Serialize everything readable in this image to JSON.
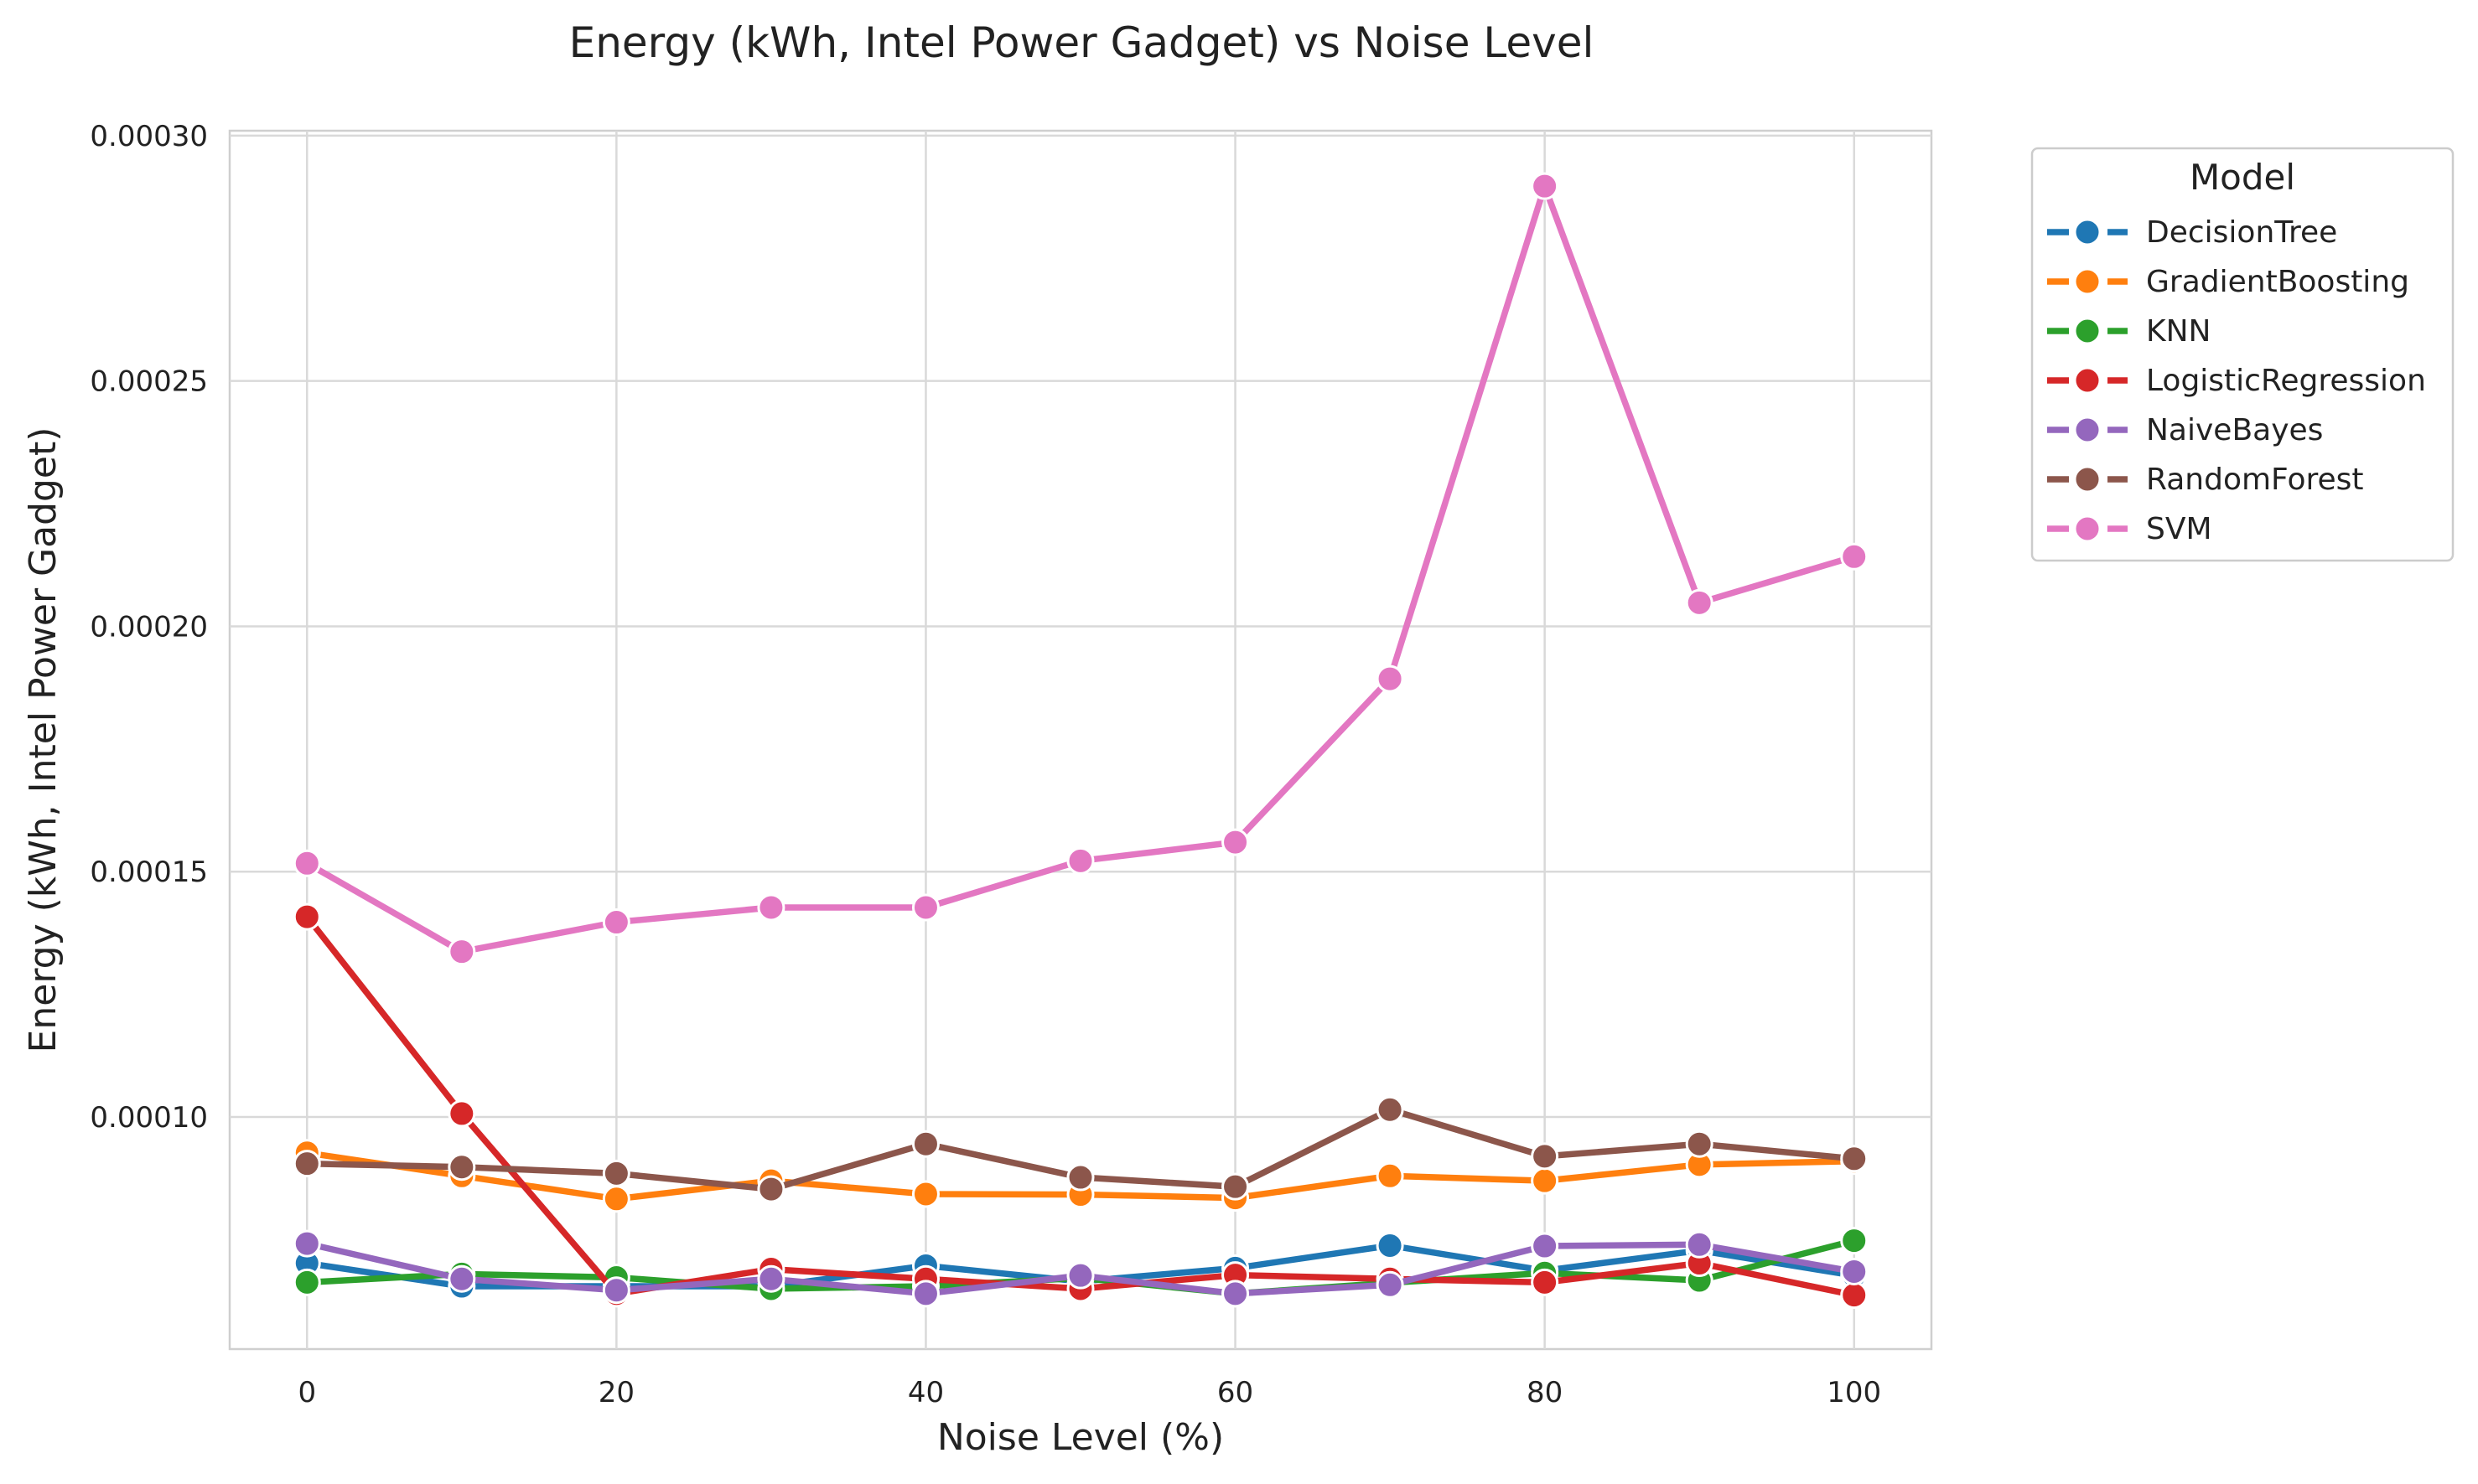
{
  "chart_data": {
    "type": "line",
    "title": "Energy (kWh, Intel Power Gadget) vs Noise Level",
    "xlabel": "Noise Level (%)",
    "ylabel": "Energy (kWh, Intel Power Gadget)",
    "x": [
      0,
      10,
      20,
      30,
      40,
      50,
      60,
      70,
      80,
      90,
      100
    ],
    "xticks": [
      0,
      20,
      40,
      60,
      80,
      100
    ],
    "xtick_labels": [
      "0",
      "20",
      "40",
      "60",
      "80",
      "100"
    ],
    "yticks": [
      0.0001,
      0.00015,
      0.0002,
      0.00025,
      0.0003
    ],
    "ytick_labels": [
      "0.00010",
      "0.00015",
      "0.00020",
      "0.00025",
      "0.00030"
    ],
    "xlim": [
      -5,
      105
    ],
    "ylim": [
      5.27e-05,
      0.000301
    ],
    "grid": true,
    "legend": {
      "title": "Model",
      "placement": "outside-right"
    },
    "series": [
      {
        "name": "DecisionTree",
        "color": "#1f77b4",
        "values": [
          7.02e-05,
          6.55e-05,
          6.55e-05,
          6.55e-05,
          6.97e-05,
          6.65e-05,
          6.92e-05,
          7.38e-05,
          6.87e-05,
          7.28e-05,
          6.77e-05
        ]
      },
      {
        "name": "GradientBoosting",
        "color": "#ff7f0e",
        "values": [
          9.27e-05,
          8.8e-05,
          8.33e-05,
          8.7e-05,
          8.43e-05,
          8.42e-05,
          8.35e-05,
          8.8e-05,
          8.7e-05,
          9.03e-05,
          9.1e-05
        ]
      },
      {
        "name": "KNN",
        "color": "#2ca02c",
        "values": [
          6.63e-05,
          6.8e-05,
          6.73e-05,
          6.5e-05,
          6.55e-05,
          6.72e-05,
          6.4e-05,
          6.62e-05,
          6.82e-05,
          6.67e-05,
          7.48e-05
        ]
      },
      {
        "name": "LogisticRegression",
        "color": "#d62728",
        "values": [
          0.0001408,
          0.0001007,
          6.4e-05,
          6.9e-05,
          6.7e-05,
          6.5e-05,
          6.78e-05,
          6.7e-05,
          6.63e-05,
          7.02e-05,
          6.37e-05
        ]
      },
      {
        "name": "NaiveBayes",
        "color": "#9467bd",
        "values": [
          7.42e-05,
          6.7e-05,
          6.47e-05,
          6.7e-05,
          6.4e-05,
          6.77e-05,
          6.4e-05,
          6.58e-05,
          7.37e-05,
          7.4e-05,
          6.85e-05
        ]
      },
      {
        "name": "RandomForest",
        "color": "#8c564b",
        "values": [
          9.05e-05,
          8.98e-05,
          8.85e-05,
          8.53e-05,
          9.45e-05,
          8.77e-05,
          8.58e-05,
          0.0001015,
          9.2e-05,
          9.45e-05,
          9.15e-05
        ]
      },
      {
        "name": "SVM",
        "color": "#e377c2",
        "values": [
          0.0001517,
          0.0001337,
          0.0001397,
          0.0001427,
          0.0001427,
          0.0001522,
          0.000156,
          0.0001893,
          0.0002897,
          0.0002048,
          0.0002142
        ]
      }
    ]
  }
}
